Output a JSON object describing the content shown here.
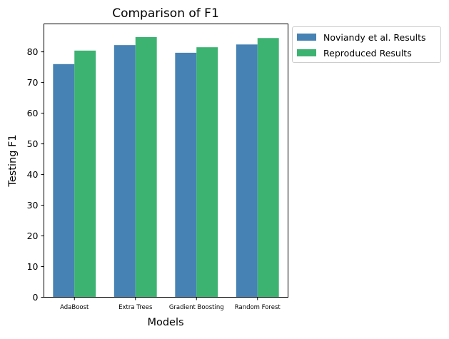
{
  "chart_data": {
    "type": "bar",
    "title": "Comparison of F1",
    "xlabel": "Models",
    "ylabel": "Testing F1",
    "categories": [
      "AdaBoost",
      "Extra Trees",
      "Gradient Boosting",
      "Random Forest"
    ],
    "series": [
      {
        "name": "Noviandy et al. Results",
        "color": "#4682b4",
        "values": [
          76.0,
          82.2,
          79.7,
          82.4
        ]
      },
      {
        "name": "Reproduced Results",
        "color": "#3cb371",
        "values": [
          80.4,
          84.8,
          81.5,
          84.5
        ]
      }
    ],
    "ylim": [
      0,
      89.1
    ],
    "yticks": [
      "0",
      "10",
      "20",
      "30",
      "40",
      "50",
      "60",
      "70",
      "80"
    ],
    "grid": false,
    "legend_position": "outside-top-right"
  }
}
